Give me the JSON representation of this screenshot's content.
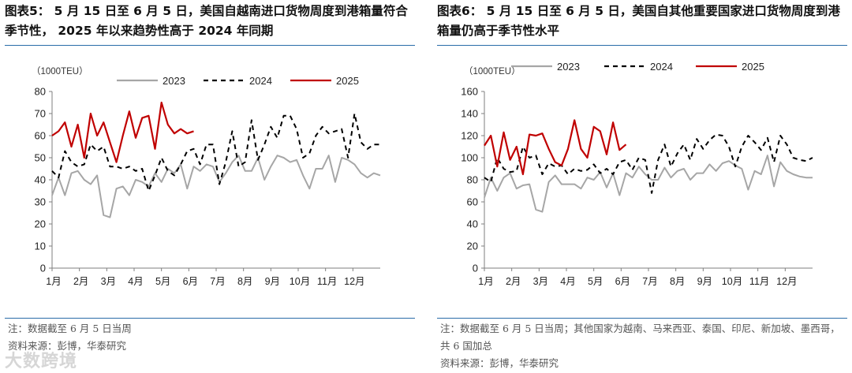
{
  "charts": [
    {
      "title": "图表5： 5 月 15 日至 6 月 5 日，美国自越南进口货物周度到港箱量符合季节性， 2025 年以来趋势性高于 2024 年同期",
      "note": "注：数据截至 6 月 5 日当周",
      "source": "资料来源：彭博，华泰研究",
      "chart_data": {
        "type": "line",
        "unit_label": "（1000TEU）",
        "x_tick_labels": [
          "1月",
          "2月",
          "3月",
          "4月",
          "5月",
          "6月",
          "7月",
          "8月",
          "9月",
          "10月",
          "11月",
          "12月"
        ],
        "ylim": [
          0,
          80
        ],
        "y_ticks": [
          0,
          10,
          20,
          30,
          40,
          50,
          60,
          70,
          80
        ],
        "grid": false,
        "legend_position": "top",
        "series": [
          {
            "name": "2023",
            "color": "#a6a6a6",
            "dash": "solid",
            "x": [
              1,
              2,
              3,
              4,
              5,
              6,
              7,
              8,
              9,
              10,
              11,
              12,
              13,
              14,
              15,
              16,
              17,
              18,
              19,
              20,
              21,
              22,
              23,
              24,
              25,
              26,
              27,
              28,
              29,
              30,
              31,
              32,
              33,
              34,
              35,
              36,
              37,
              38,
              39,
              40,
              41,
              42,
              43,
              44,
              45,
              46,
              47,
              48,
              49,
              50,
              51,
              52
            ],
            "values": [
              33,
              41,
              33,
              43,
              44,
              40,
              38,
              42,
              24,
              23,
              36,
              37,
              33,
              40,
              39,
              37,
              43,
              39,
              45,
              43,
              47,
              36,
              46,
              44,
              47,
              46,
              39,
              43,
              48,
              51,
              44,
              44,
              50,
              40,
              46,
              51,
              50,
              48,
              49,
              42,
              36,
              45,
              45,
              51,
              39,
              50,
              49,
              47,
              43,
              41,
              43,
              42
            ]
          },
          {
            "name": "2024",
            "color": "#000000",
            "dash": "dashed",
            "x": [
              1,
              2,
              3,
              4,
              5,
              6,
              7,
              8,
              9,
              10,
              11,
              12,
              13,
              14,
              15,
              16,
              17,
              18,
              19,
              20,
              21,
              22,
              23,
              24,
              25,
              26,
              27,
              28,
              29,
              30,
              31,
              32,
              33,
              34,
              35,
              36,
              37,
              38,
              39,
              40,
              41,
              42,
              43,
              44,
              45,
              46,
              47,
              48,
              49,
              50,
              51,
              52
            ],
            "values": [
              44,
              41,
              53,
              48,
              46,
              47,
              56,
              53,
              55,
              46,
              46,
              45,
              46,
              44,
              45,
              35,
              42,
              50,
              44,
              42,
              47,
              53,
              54,
              47,
              56,
              56,
              38,
              48,
              62,
              46,
              48,
              67,
              49,
              56,
              64,
              59,
              69,
              69,
              63,
              50,
              52,
              60,
              64,
              61,
              62,
              63,
              50,
              70,
              57,
              54,
              56,
              56
            ]
          },
          {
            "name": "2025",
            "color": "#c00000",
            "dash": "solid",
            "x": [
              1,
              2,
              3,
              4,
              5,
              6,
              7,
              8,
              9,
              10,
              11,
              12,
              13,
              14,
              15,
              16,
              17,
              18,
              19,
              20,
              21,
              22,
              23
            ],
            "values": [
              60,
              62,
              66,
              55,
              65,
              50,
              70,
              60,
              66,
              57,
              48,
              60,
              71,
              59,
              68,
              69,
              54,
              75,
              65,
              61,
              63,
              61,
              62
            ]
          }
        ]
      }
    },
    {
      "title": "图表6： 5 月 15 日至 6 月 5 日，美国自其他重要国家进口货物周度到港箱量仍高于季节性水平",
      "note": "注：数据截至 6 月 5 日当周；其他国家为越南、马来西亚、泰国、印尼、新加坡、墨西哥，共 6 国加总",
      "source": "资料来源：彭博，华泰研究",
      "chart_data": {
        "type": "line",
        "unit_label": "（1000TEU）",
        "x_tick_labels": [
          "1月",
          "2月",
          "3月",
          "4月",
          "5月",
          "6月",
          "7月",
          "8月",
          "9月",
          "10月",
          "11月",
          "12月"
        ],
        "ylim": [
          0,
          160
        ],
        "y_ticks": [
          0,
          20,
          40,
          60,
          80,
          100,
          120,
          140,
          160
        ],
        "grid": false,
        "legend_position": "top",
        "series": [
          {
            "name": "2023",
            "color": "#a6a6a6",
            "dash": "solid",
            "x": [
              1,
              2,
              3,
              4,
              5,
              6,
              7,
              8,
              9,
              10,
              11,
              12,
              13,
              14,
              15,
              16,
              17,
              18,
              19,
              20,
              21,
              22,
              23,
              24,
              25,
              26,
              27,
              28,
              29,
              30,
              31,
              32,
              33,
              34,
              35,
              36,
              37,
              38,
              39,
              40,
              41,
              42,
              43,
              44,
              45,
              46,
              47,
              48,
              49,
              50,
              51,
              52
            ],
            "values": [
              64,
              82,
              70,
              82,
              86,
              72,
              75,
              76,
              53,
              51,
              78,
              84,
              76,
              76,
              76,
              72,
              82,
              80,
              87,
              73,
              86,
              66,
              86,
              82,
              92,
              85,
              80,
              80,
              91,
              82,
              88,
              90,
              80,
              86,
              86,
              94,
              88,
              95,
              97,
              93,
              90,
              71,
              88,
              85,
              102,
              74,
              96,
              88,
              85,
              83,
              82,
              82
            ]
          },
          {
            "name": "2024",
            "color": "#000000",
            "dash": "dashed",
            "x": [
              1,
              2,
              3,
              4,
              5,
              6,
              7,
              8,
              9,
              10,
              11,
              12,
              13,
              14,
              15,
              16,
              17,
              18,
              19,
              20,
              21,
              22,
              23,
              24,
              25,
              26,
              27,
              28,
              29,
              30,
              31,
              32,
              33,
              34,
              35,
              36,
              37,
              38,
              39,
              40,
              41,
              42,
              43,
              44,
              45,
              46,
              47,
              48,
              49,
              50,
              51,
              52
            ],
            "values": [
              82,
              78,
              100,
              90,
              87,
              88,
              110,
              100,
              102,
              85,
              95,
              92,
              93,
              85,
              90,
              88,
              89,
              94,
              86,
              90,
              85,
              96,
              98,
              89,
              100,
              98,
              68,
              98,
              112,
              92,
              104,
              112,
              98,
              117,
              108,
              116,
              121,
              120,
              110,
              92,
              110,
              120,
              114,
              107,
              118,
              96,
              120,
              112,
              100,
              98,
              97,
              100
            ]
          },
          {
            "name": "2025",
            "color": "#c00000",
            "dash": "solid",
            "x": [
              1,
              2,
              3,
              4,
              5,
              6,
              7,
              8,
              9,
              10,
              11,
              12,
              13,
              14,
              15,
              16,
              17,
              18,
              19,
              20,
              21,
              22,
              23
            ],
            "values": [
              111,
              120,
              92,
              123,
              98,
              110,
              85,
              121,
              120,
              122,
              108,
              96,
              93,
              108,
              134,
              108,
              100,
              128,
              124,
              103,
              132,
              107,
              112
            ]
          }
        ]
      }
    }
  ],
  "watermark": "大数跨境"
}
